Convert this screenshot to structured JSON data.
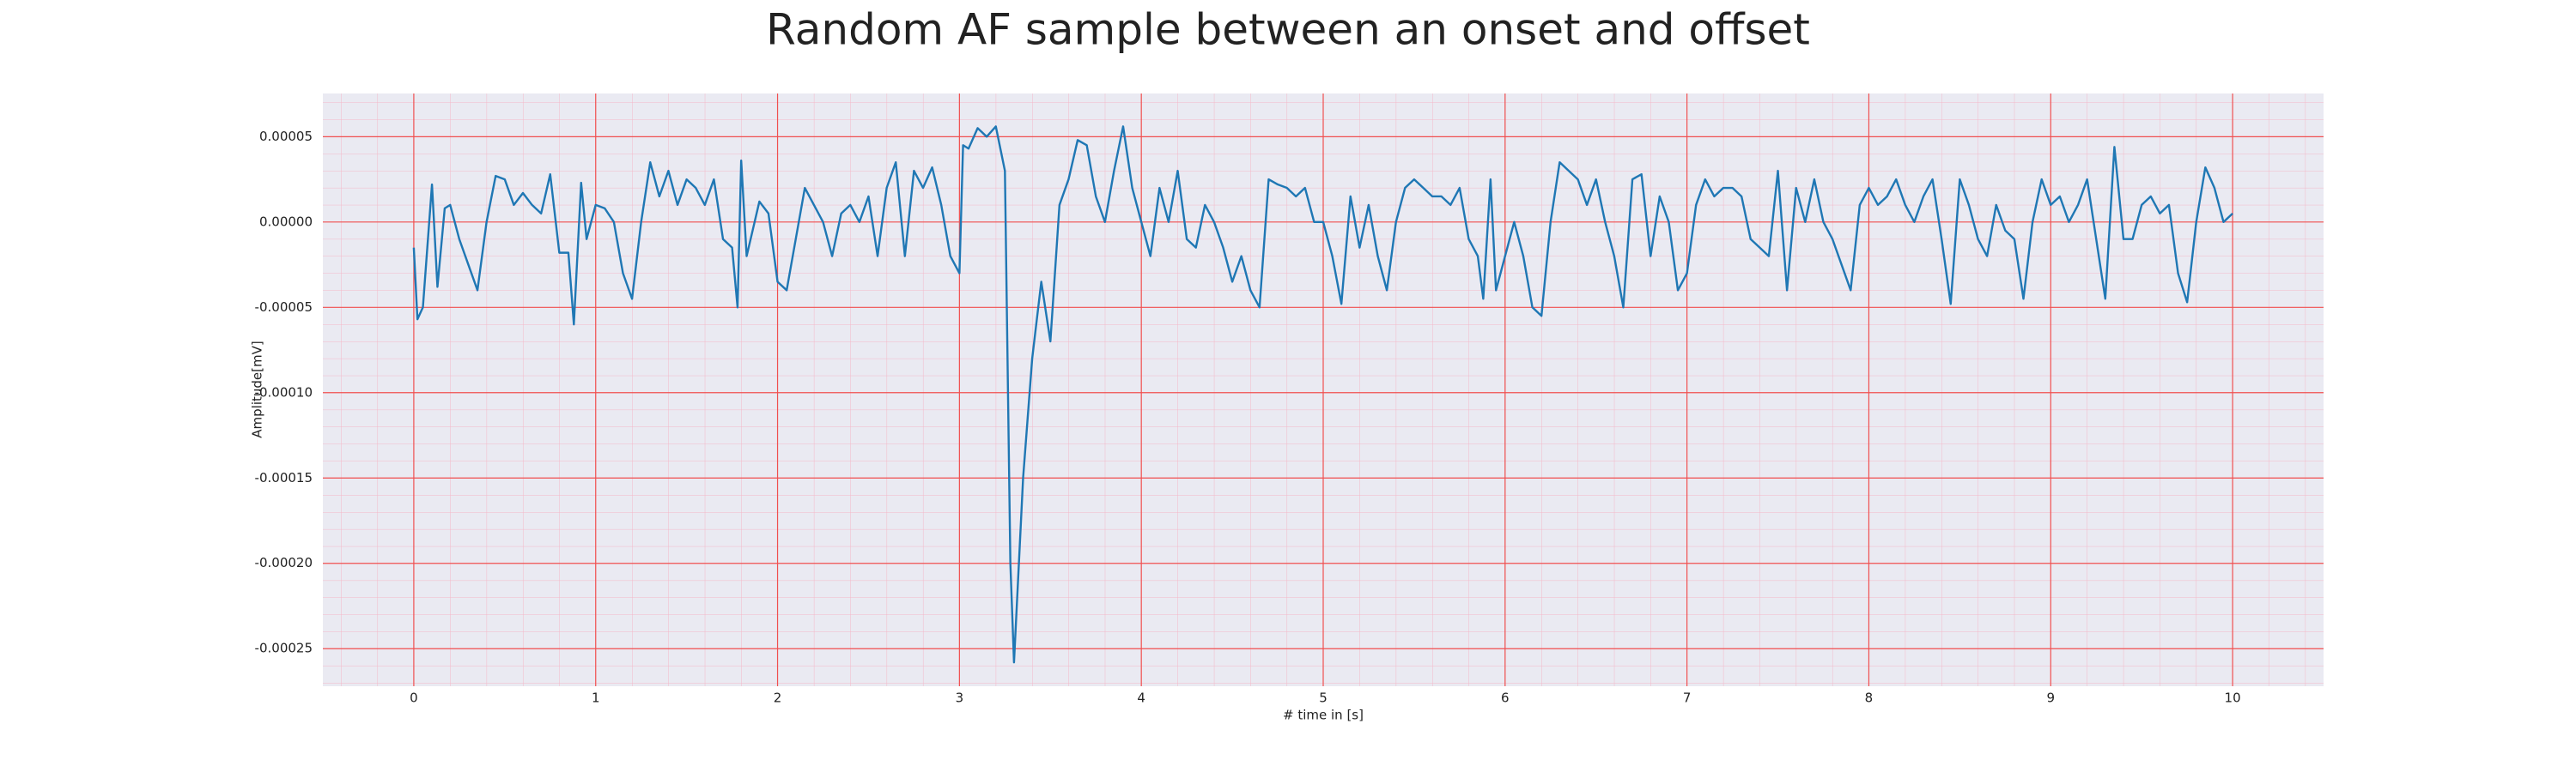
{
  "chart_data": {
    "type": "line",
    "title": "Random AF sample between an onset and offset",
    "xlabel": "# time in [s]",
    "ylabel": "Amplitude[mV]",
    "color": "#1f77b4",
    "grid": true,
    "xlim": [
      -0.5,
      10.5
    ],
    "ylim": [
      -0.000272,
      7.53e-05
    ],
    "xticks": [
      0,
      1,
      2,
      3,
      4,
      5,
      6,
      7,
      8,
      9,
      10
    ],
    "yticks": [
      5e-05,
      {
        "value": 0,
        "label": "0.00000"
      },
      -5e-05,
      {
        "value": -0.0001,
        "label": "-0.00010"
      },
      -0.00015,
      {
        "value": -0.0002,
        "label": "-0.00020"
      },
      -0.00025
    ],
    "x": [
      0,
      0.02,
      0.05,
      0.1,
      0.13,
      0.17,
      0.2,
      0.25,
      0.3,
      0.35,
      0.4,
      0.45,
      0.5,
      0.55,
      0.6,
      0.65,
      0.7,
      0.75,
      0.8,
      0.85,
      0.88,
      0.92,
      0.95,
      1.0,
      1.05,
      1.1,
      1.15,
      1.2,
      1.25,
      1.3,
      1.35,
      1.4,
      1.45,
      1.5,
      1.55,
      1.6,
      1.65,
      1.7,
      1.75,
      1.78,
      1.8,
      1.83,
      1.9,
      1.95,
      2.0,
      2.05,
      2.1,
      2.15,
      2.2,
      2.25,
      2.3,
      2.35,
      2.4,
      2.45,
      2.5,
      2.55,
      2.6,
      2.65,
      2.7,
      2.75,
      2.8,
      2.85,
      2.9,
      2.95,
      3.0,
      3.02,
      3.05,
      3.1,
      3.15,
      3.2,
      3.25,
      3.28,
      3.3,
      3.35,
      3.4,
      3.45,
      3.5,
      3.55,
      3.6,
      3.65,
      3.7,
      3.75,
      3.8,
      3.85,
      3.9,
      3.95,
      4.0,
      4.05,
      4.1,
      4.15,
      4.2,
      4.25,
      4.3,
      4.35,
      4.4,
      4.45,
      4.5,
      4.55,
      4.6,
      4.65,
      4.7,
      4.75,
      4.8,
      4.85,
      4.9,
      4.95,
      5.0,
      5.05,
      5.1,
      5.15,
      5.2,
      5.25,
      5.3,
      5.35,
      5.4,
      5.45,
      5.5,
      5.55,
      5.6,
      5.65,
      5.7,
      5.75,
      5.8,
      5.85,
      5.88,
      5.92,
      5.95,
      6.0,
      6.05,
      6.1,
      6.15,
      6.2,
      6.25,
      6.3,
      6.35,
      6.4,
      6.45,
      6.5,
      6.55,
      6.6,
      6.65,
      6.7,
      6.75,
      6.8,
      6.85,
      6.9,
      6.95,
      7.0,
      7.05,
      7.1,
      7.15,
      7.2,
      7.25,
      7.3,
      7.35,
      7.4,
      7.45,
      7.5,
      7.55,
      7.6,
      7.65,
      7.7,
      7.75,
      7.8,
      7.85,
      7.9,
      7.95,
      8.0,
      8.05,
      8.1,
      8.15,
      8.2,
      8.25,
      8.3,
      8.35,
      8.4,
      8.45,
      8.5,
      8.55,
      8.6,
      8.65,
      8.7,
      8.75,
      8.8,
      8.85,
      8.9,
      8.95,
      9.0,
      9.05,
      9.1,
      9.15,
      9.2,
      9.25,
      9.3,
      9.35,
      9.4,
      9.45,
      9.5,
      9.55,
      9.6,
      9.65,
      9.7,
      9.75,
      9.8,
      9.85,
      9.9,
      9.95,
      10.0
    ],
    "values": [
      -1.5e-05,
      -5.7e-05,
      -5e-05,
      2.2e-05,
      -3.8e-05,
      8e-06,
      1e-05,
      -1e-05,
      -2.5e-05,
      -4e-05,
      0,
      2.7e-05,
      2.5e-05,
      1e-05,
      1.7e-05,
      1e-05,
      5e-06,
      2.8e-05,
      -1.8e-05,
      -1.8e-05,
      -6e-05,
      2.3e-05,
      -1e-05,
      1e-05,
      8e-06,
      0,
      -3e-05,
      -4.5e-05,
      0,
      3.5e-05,
      1.5e-05,
      3e-05,
      1e-05,
      2.5e-05,
      2e-05,
      1e-05,
      2.5e-05,
      -1e-05,
      -1.5e-05,
      -5e-05,
      3.6e-05,
      -2e-05,
      1.2e-05,
      5e-06,
      -3.5e-05,
      -4e-05,
      -1e-05,
      2e-05,
      1e-05,
      0,
      -2e-05,
      5e-06,
      1e-05,
      0,
      1.5e-05,
      -2e-05,
      2e-05,
      3.5e-05,
      -2e-05,
      3e-05,
      2e-05,
      3.2e-05,
      1e-05,
      -2e-05,
      -3e-05,
      4.5e-05,
      4.3e-05,
      5.5e-05,
      5e-05,
      5.6e-05,
      3e-05,
      -0.0002,
      -0.000258,
      -0.00015,
      -8e-05,
      -3.5e-05,
      -7e-05,
      1e-05,
      2.5e-05,
      4.8e-05,
      4.5e-05,
      1.5e-05,
      0,
      3e-05,
      5.6e-05,
      2e-05,
      0,
      -2e-05,
      2e-05,
      0,
      3e-05,
      -1e-05,
      -1.5e-05,
      1e-05,
      0,
      -1.5e-05,
      -3.5e-05,
      -2e-05,
      -4e-05,
      -5e-05,
      2.5e-05,
      2.2e-05,
      2e-05,
      1.5e-05,
      2e-05,
      0,
      0,
      -2e-05,
      -4.8e-05,
      1.5e-05,
      -1.5e-05,
      1e-05,
      -2e-05,
      -4e-05,
      0,
      2e-05,
      2.5e-05,
      2e-05,
      1.5e-05,
      1.5e-05,
      1e-05,
      2e-05,
      -1e-05,
      -2e-05,
      -4.5e-05,
      2.5e-05,
      -4e-05,
      -2e-05,
      0,
      -2e-05,
      -5e-05,
      -5.5e-05,
      0,
      3.5e-05,
      3e-05,
      2.5e-05,
      1e-05,
      2.5e-05,
      0,
      -2e-05,
      -5e-05,
      2.5e-05,
      2.8e-05,
      -2e-05,
      1.5e-05,
      0,
      -4e-05,
      -3e-05,
      1e-05,
      2.5e-05,
      1.5e-05,
      2e-05,
      2e-05,
      1.5e-05,
      -1e-05,
      -1.5e-05,
      -2e-05,
      3e-05,
      -4e-05,
      2e-05,
      0,
      2.5e-05,
      0,
      -1e-05,
      -2.5e-05,
      -4e-05,
      1e-05,
      2e-05,
      1e-05,
      1.5e-05,
      2.5e-05,
      1e-05,
      0,
      1.5e-05,
      2.5e-05,
      -1e-05,
      -4.8e-05,
      2.5e-05,
      1e-05,
      -1e-05,
      -2e-05,
      1e-05,
      -5e-06,
      -1e-05,
      -4.5e-05,
      0,
      2.5e-05,
      1e-05,
      1.5e-05,
      0,
      1e-05,
      2.5e-05,
      -1e-05,
      -4.5e-05,
      4.4e-05,
      -1e-05,
      -1e-05,
      1e-05,
      1.5e-05,
      5e-06,
      1e-05,
      -3e-05,
      -4.7e-05,
      0,
      3.2e-05,
      2e-05,
      0,
      5e-06
    ]
  }
}
